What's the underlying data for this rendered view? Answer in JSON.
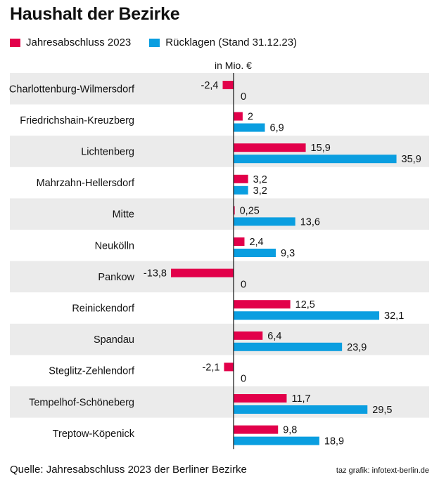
{
  "title": "Haushalt der Bezirke",
  "unit_label": "in Mio. €",
  "source": "Quelle: Jahresabschluss 2023 der Berliner Bezirke",
  "credit": "taz grafik: infotext-berlin.de",
  "chart_data": {
    "type": "bar",
    "orientation": "horizontal",
    "categories": [
      "Charlottenburg-Wilmersdorf",
      "Friedrichshain-Kreuzberg",
      "Lichtenberg",
      "Mahrzahn-Hellersdorf",
      "Mitte",
      "Neukölln",
      "Pankow",
      "Reinickendorf",
      "Spandau",
      "Steglitz-Zehlendorf",
      "Tempelhof-Schöneberg",
      "Treptow-Köpenick"
    ],
    "series": [
      {
        "name": "Jahresabschluss 2023",
        "color": "#e2004a",
        "values": [
          -2.4,
          2,
          15.9,
          3.2,
          0.25,
          2.4,
          -13.8,
          12.5,
          6.4,
          -2.1,
          11.7,
          9.8
        ],
        "labels": [
          "-2,4",
          "2",
          "15,9",
          "3,2",
          "0,25",
          "2,4",
          "-13,8",
          "12,5",
          "6,4",
          "-2,1",
          "11,7",
          "9,8"
        ]
      },
      {
        "name": "Rücklagen (Stand 31.12.23)",
        "color": "#0a9ee0",
        "values": [
          0,
          6.9,
          35.9,
          3.2,
          13.6,
          9.3,
          0,
          32.1,
          23.9,
          0,
          29.5,
          18.9
        ],
        "labels": [
          "0",
          "6,9",
          "35,9",
          "3,2",
          "13,6",
          "9,3",
          "0",
          "32,1",
          "23,9",
          "0",
          "29,5",
          "18,9"
        ]
      }
    ],
    "xlim": [
      -14.5,
      37
    ],
    "band_color": "#ebebeb"
  }
}
